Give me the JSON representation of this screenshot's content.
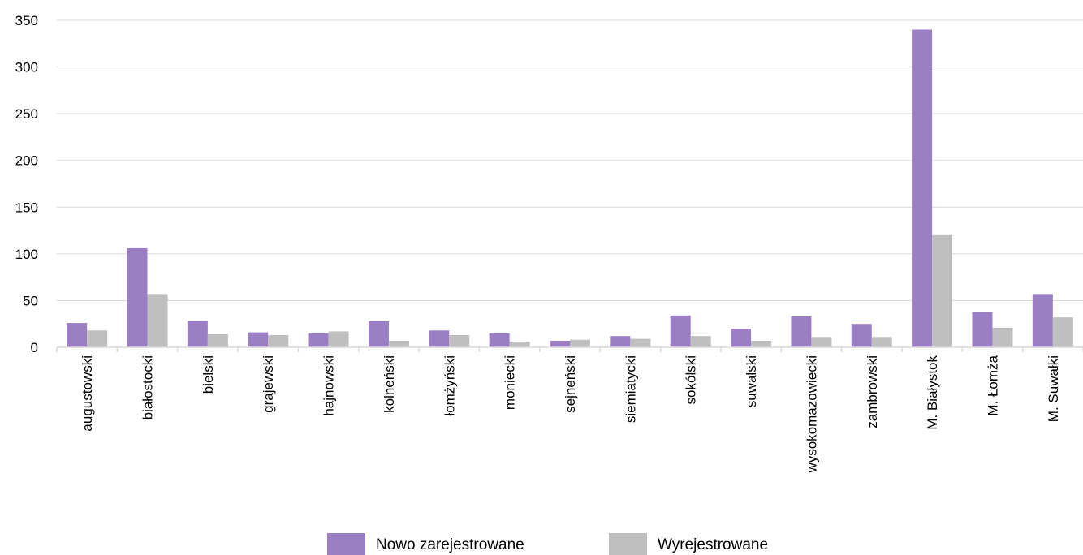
{
  "chart_data": {
    "type": "bar",
    "title": "",
    "xlabel": "",
    "ylabel": "",
    "ylim": [
      0,
      350
    ],
    "yticks": [
      0,
      50,
      100,
      150,
      200,
      250,
      300,
      350
    ],
    "grid": true,
    "legend_position": "bottom",
    "categories": [
      "augustowski",
      "białostocki",
      "bielski",
      "grajewski",
      "hajnowski",
      "kolneński",
      "łomżyński",
      "moniecki",
      "sejneński",
      "siemiatycki",
      "sokólski",
      "suwalski",
      "wysokomazowiecki",
      "zambrowski",
      "M. Białystok",
      "M. Łomża",
      "M. Suwałki"
    ],
    "series": [
      {
        "name": "Nowo zarejestrowane",
        "color": "#9b7fc4",
        "values": [
          26,
          106,
          28,
          16,
          15,
          28,
          18,
          15,
          7,
          12,
          34,
          20,
          33,
          25,
          340,
          38,
          57
        ]
      },
      {
        "name": "Wyrejestrowane",
        "color": "#bfbfbf",
        "values": [
          18,
          57,
          14,
          13,
          17,
          7,
          13,
          6,
          8,
          9,
          12,
          7,
          11,
          11,
          120,
          21,
          32
        ]
      }
    ]
  }
}
